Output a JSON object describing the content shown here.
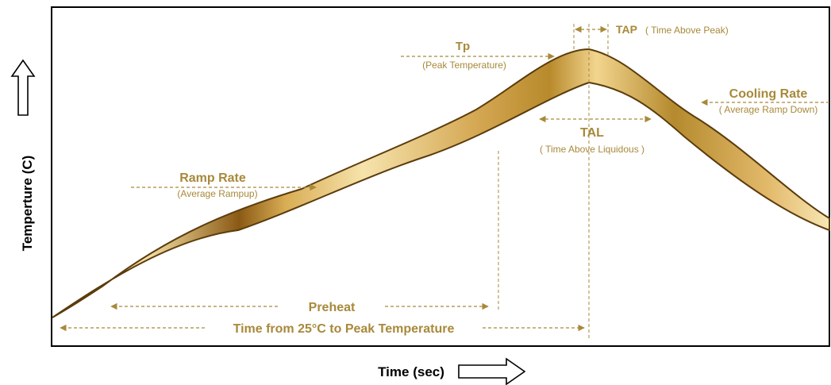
{
  "colors": {
    "accent": "#a8893a",
    "band_light": "#f3dfa0",
    "band_mid": "#d9ad55",
    "band_dark": "#8a5a14",
    "axis": "#000000"
  },
  "axes": {
    "x_title": "Time (sec)",
    "y_title": "Temperture (C)"
  },
  "labels": {
    "tp": {
      "title": "Tp",
      "sub": "(Peak Temperature)"
    },
    "tap": {
      "title": "TAP",
      "sub": "( Time Above Peak)"
    },
    "cooling": {
      "title": "Cooling Rate",
      "sub": "( Average Ramp Down)"
    },
    "tal": {
      "title": "TAL",
      "sub": "( Time Above Liquidous )"
    },
    "ramp": {
      "title": "Ramp Rate",
      "sub": "(Average Rampup)"
    },
    "preheat": {
      "title": "Preheat"
    },
    "time_to_peak": {
      "title": "Time from 25°C to Peak Temperature"
    }
  }
}
